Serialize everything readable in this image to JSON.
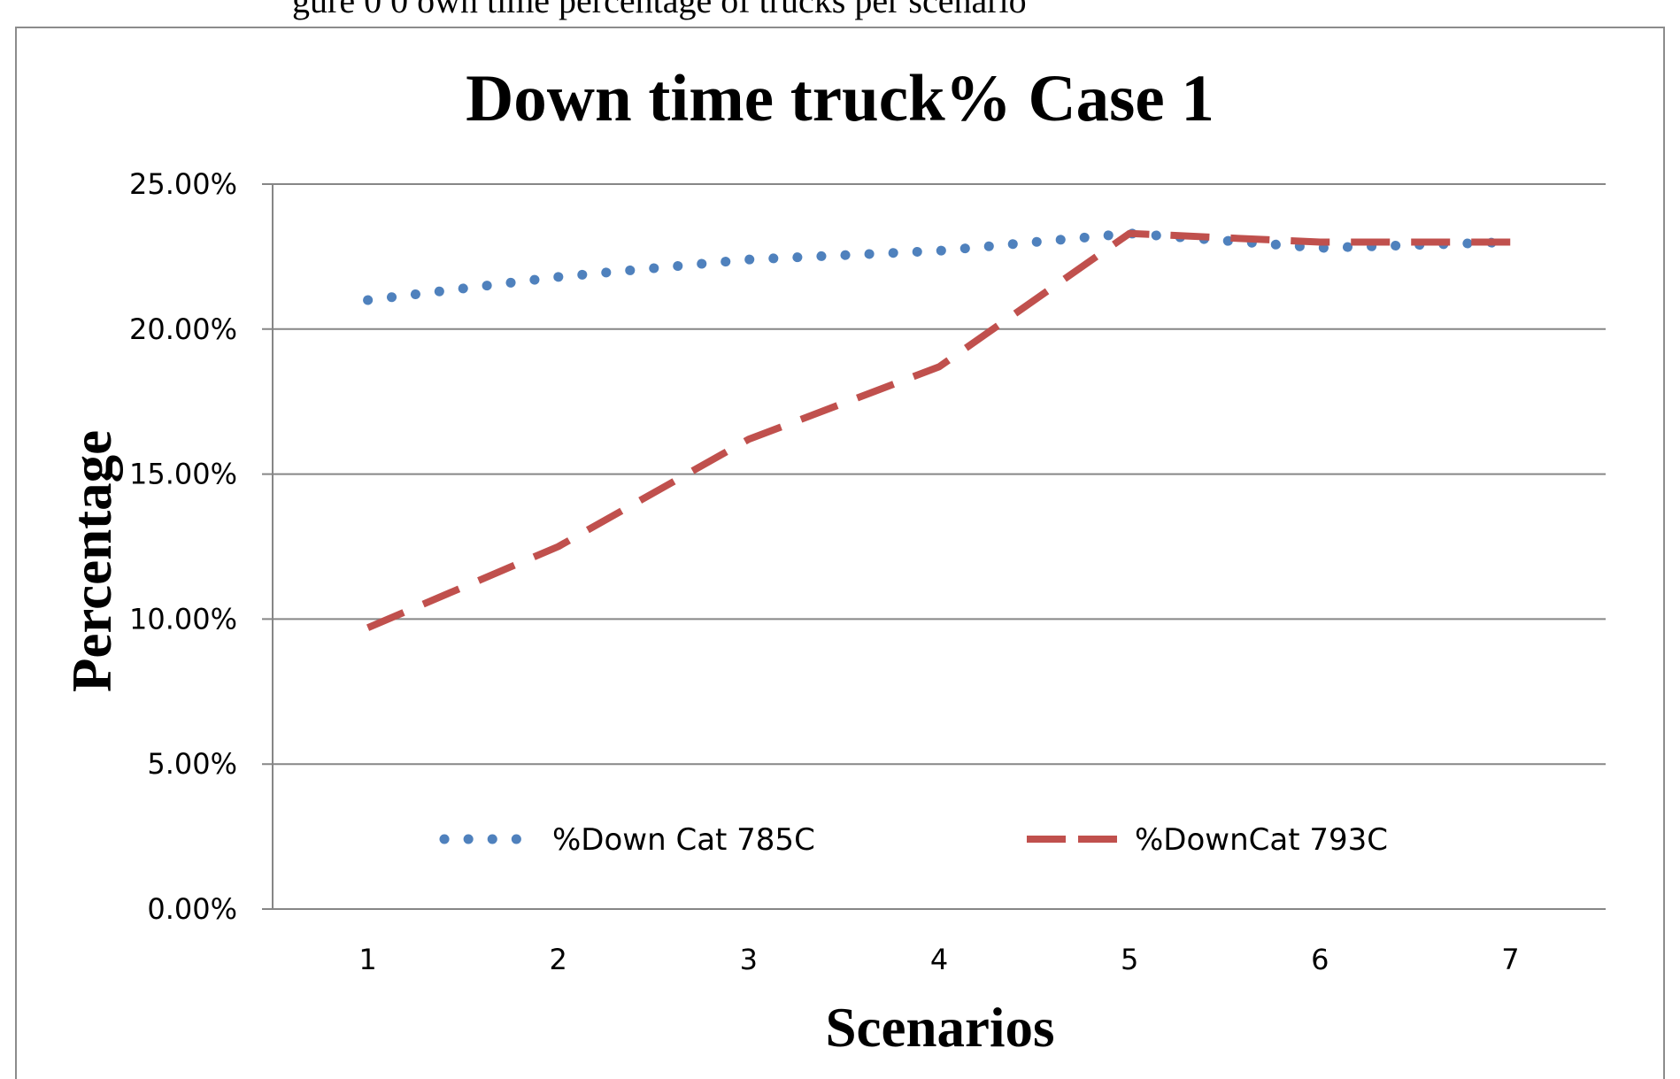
{
  "caption_fragment": "gure 0 0 own time percentage of trucks per scenario",
  "chart_data": {
    "type": "line",
    "title": "Down time truck% Case 1",
    "xlabel": "Scenarios",
    "ylabel": "Percentage",
    "categories": [
      "1",
      "2",
      "3",
      "4",
      "5",
      "6",
      "7"
    ],
    "ylim": [
      0,
      0.25
    ],
    "yticks": [
      0,
      0.05,
      0.1,
      0.15,
      0.2,
      0.25
    ],
    "ytick_labels": [
      "0.00%",
      "5.00%",
      "10.00%",
      "15.00%",
      "20.00%",
      "25.00%"
    ],
    "grid": true,
    "legend_placement": "bottom-inside",
    "series": [
      {
        "name": "%Down Cat 785C",
        "values": [
          0.21,
          0.218,
          0.224,
          0.227,
          0.233,
          0.228,
          0.23
        ],
        "color": "#4F81BD",
        "style": "dotted"
      },
      {
        "name": "%DownCat 793C",
        "values": [
          0.097,
          0.125,
          0.162,
          0.187,
          0.233,
          0.23,
          0.23
        ],
        "color": "#C0504D",
        "style": "dashed"
      }
    ]
  }
}
